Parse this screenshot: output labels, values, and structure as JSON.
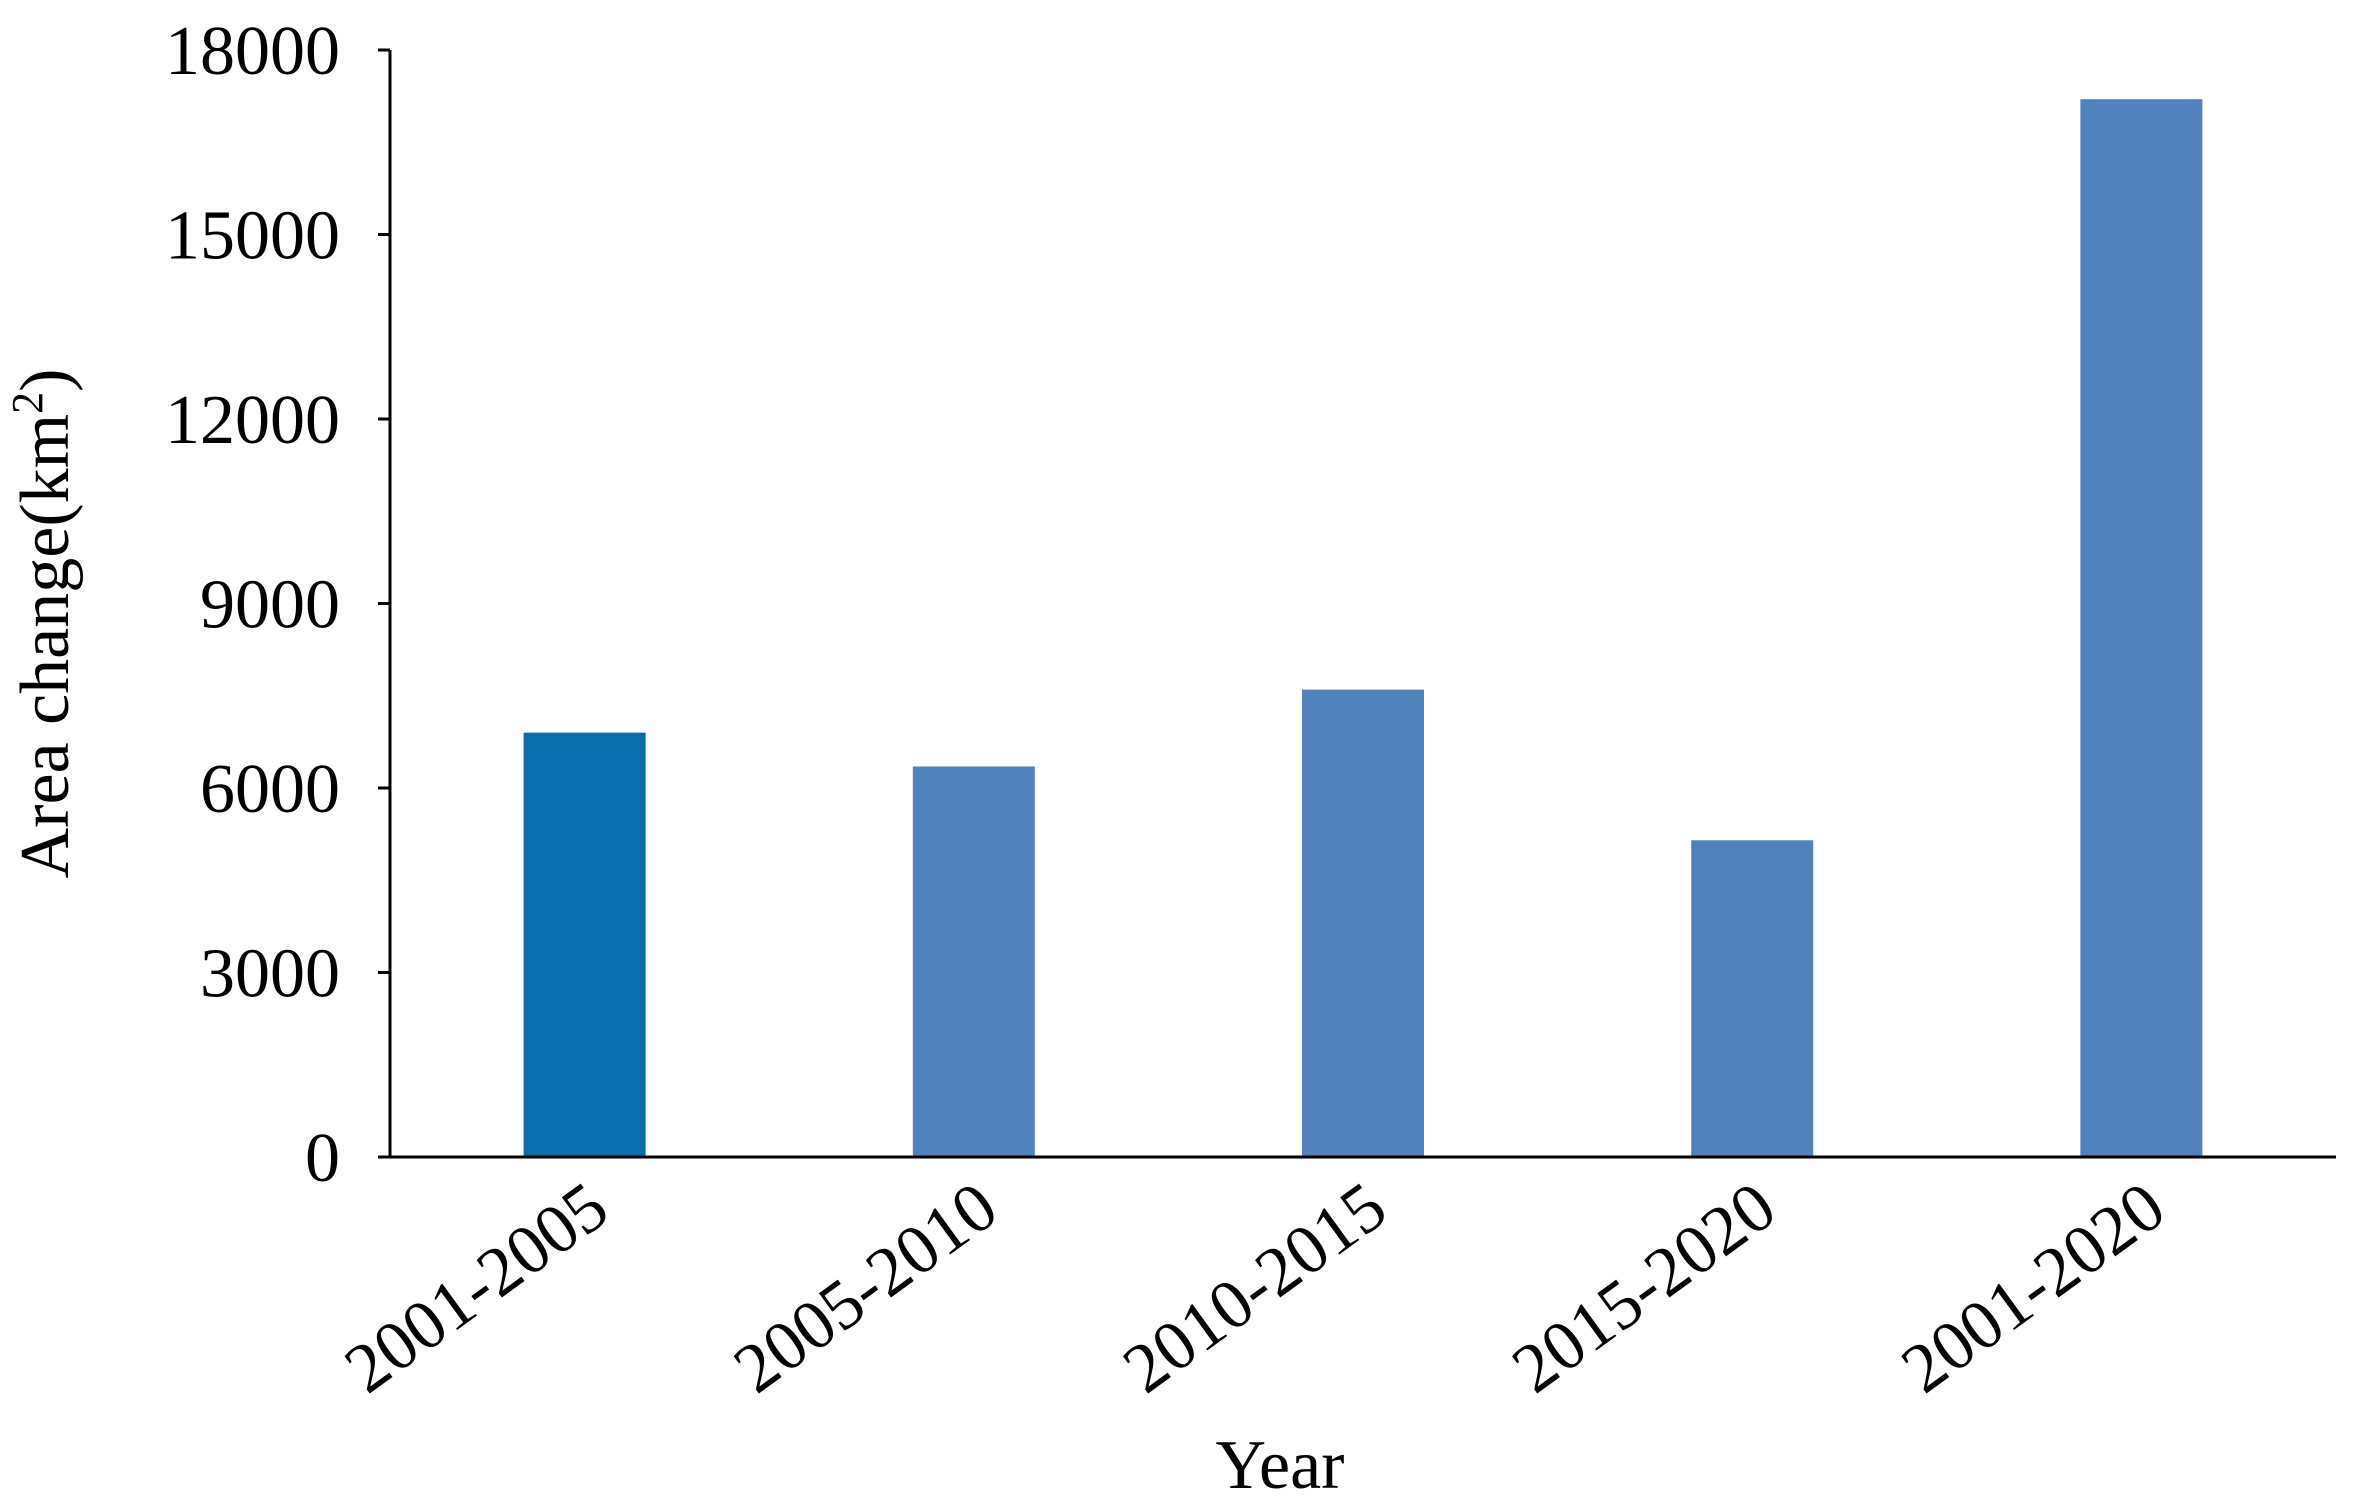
{
  "chart_data": {
    "type": "bar",
    "title": "",
    "xlabel": "Year",
    "ylabel_main": "Area change(km",
    "ylabel_sup": "2",
    "ylabel_close": ")",
    "categories": [
      "2001-2005",
      "2005-2010",
      "2010-2015",
      "2015-2020",
      "2001-2020"
    ],
    "values": [
      6900,
      6350,
      7600,
      5150,
      17200
    ],
    "bar_colors": [
      "#0a6eab",
      "#5083bd",
      "#5083bd",
      "#5083bd",
      "#5083bd"
    ],
    "ylim": [
      0,
      18000
    ],
    "yticks": [
      0,
      3000,
      6000,
      9000,
      12000,
      15000,
      18000
    ],
    "ytick_labels": [
      "0",
      "3000",
      "6000",
      "9000",
      "12000",
      "15000",
      "18000"
    ],
    "grid": false,
    "legend": "none"
  }
}
